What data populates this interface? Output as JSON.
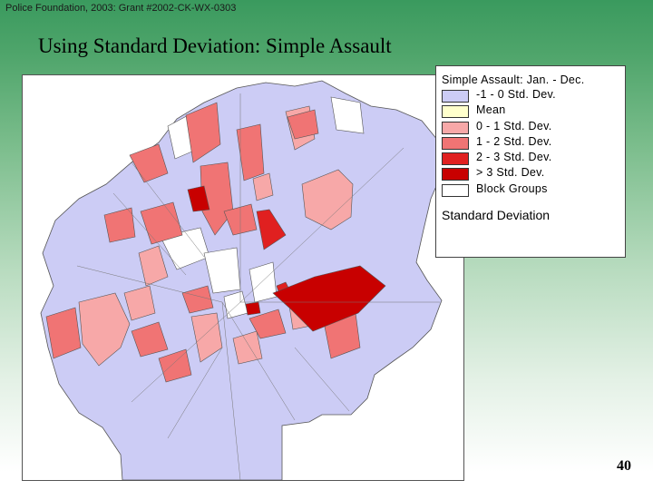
{
  "header": {
    "credit": "Police Foundation, 2003: Grant #2002-CK-WX-0303",
    "title": "Using Standard Deviation: Simple Assault"
  },
  "map": {
    "legend": {
      "title": "Simple Assault: Jan. - Dec.",
      "classes": [
        {
          "label": "-1 - 0 Std. Dev.",
          "color": "#ccccf5"
        },
        {
          "label": "Mean",
          "color": "#ffffcc"
        },
        {
          "label": "0 - 1 Std. Dev.",
          "color": "#f7a8a8"
        },
        {
          "label": "1 - 2 Std. Dev.",
          "color": "#f07474"
        },
        {
          "label": "2 - 3 Std. Dev.",
          "color": "#e02020"
        },
        {
          "label": "> 3 Std. Dev.",
          "color": "#c80000"
        },
        {
          "label": "Block Groups",
          "color": "#ffffff"
        }
      ],
      "footer": "Standard Deviation"
    }
  },
  "footer": {
    "page_number": "40"
  }
}
